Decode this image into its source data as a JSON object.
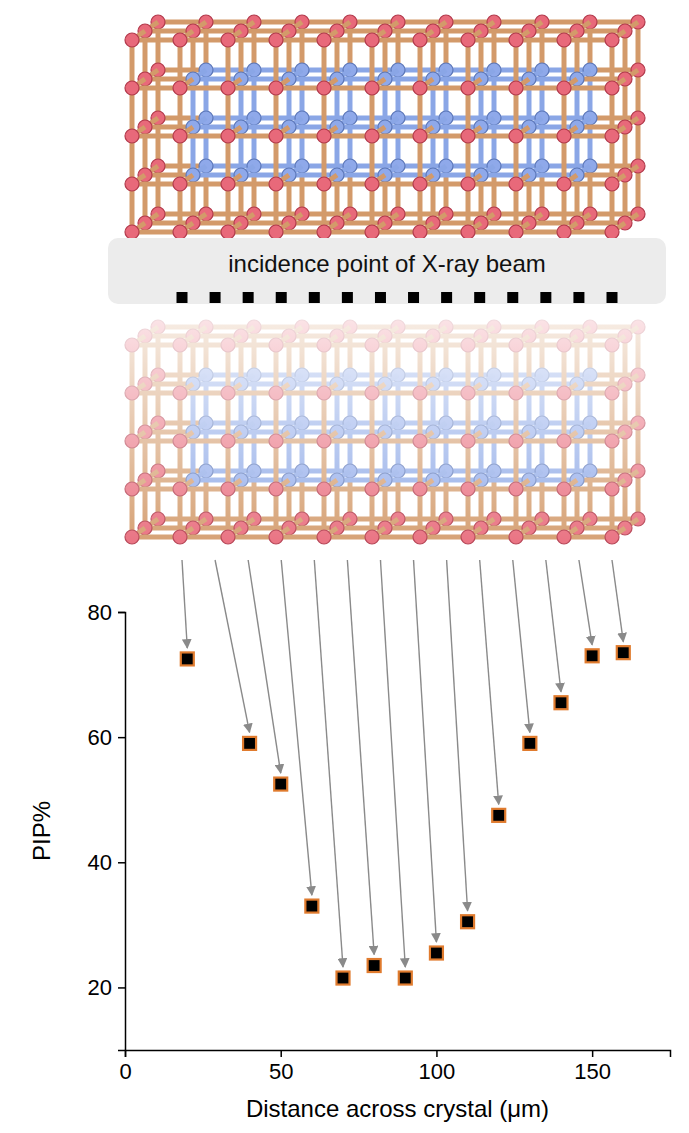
{
  "chart_data": {
    "type": "scatter",
    "annotation": "incidence point of X-ray beam",
    "x_label": "Distance across crystal (μm)",
    "y_label": "PIP%",
    "x": [
      20,
      40,
      50,
      60,
      70,
      80,
      90,
      100,
      110,
      120,
      130,
      140,
      150,
      160
    ],
    "values": [
      72.5,
      59,
      52.5,
      33,
      21.5,
      23.5,
      21.5,
      25.5,
      30.5,
      47.5,
      59,
      65.5,
      73,
      73.5
    ],
    "color": "#e07b2e",
    "marker": "square",
    "xlim": [
      0,
      175
    ],
    "ylim": [
      10,
      80
    ],
    "xticks": [
      0,
      50,
      100,
      150
    ],
    "yticks": [
      20,
      40,
      60,
      80
    ],
    "grid": false
  }
}
